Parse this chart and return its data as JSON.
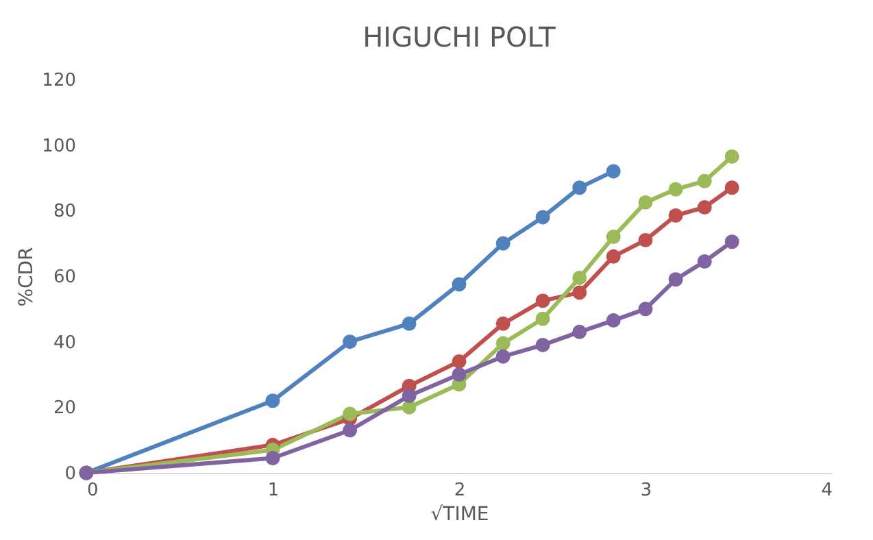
{
  "chart_data": {
    "type": "line",
    "title": "HIGUCHI POLT",
    "xlabel": "√TIME",
    "ylabel": "%CDR",
    "xlim": [
      0,
      4
    ],
    "xticks": [
      0,
      1,
      2,
      3,
      4
    ],
    "ylim": [
      0,
      120
    ],
    "yticks": [
      0,
      20,
      40,
      60,
      80,
      100,
      120
    ],
    "grid": false,
    "legend": false,
    "marker": "circle",
    "line_style": "solid",
    "series": [
      {
        "color": "#4f81bd",
        "x": [
          0,
          1,
          1.414,
          1.732,
          2,
          2.236,
          2.449,
          2.646,
          2.828
        ],
        "values": [
          0,
          22,
          40,
          45.5,
          57.5,
          70,
          78,
          87,
          92
        ]
      },
      {
        "color": "#c0504d",
        "x": [
          0,
          1,
          1.414,
          1.732,
          2,
          2.236,
          2.449,
          2.646,
          2.828,
          3,
          3.162,
          3.317,
          3.464
        ],
        "values": [
          0,
          8.5,
          16.5,
          26.5,
          34,
          45.5,
          52.5,
          55,
          66,
          71,
          78.5,
          81,
          87
        ]
      },
      {
        "color": "#9bbb59",
        "x": [
          0,
          1,
          1.414,
          1.732,
          2,
          2.236,
          2.449,
          2.646,
          2.828,
          3,
          3.162,
          3.317,
          3.464
        ],
        "values": [
          0,
          7,
          18,
          20,
          27,
          39.5,
          47,
          59.5,
          72,
          82.5,
          86.5,
          89,
          96.5
        ]
      },
      {
        "color": "#8064a2",
        "x": [
          0,
          1,
          1.414,
          1.732,
          2,
          2.236,
          2.449,
          2.646,
          2.828,
          3,
          3.162,
          3.317,
          3.464
        ],
        "values": [
          0,
          4.5,
          13,
          23.5,
          30,
          35.5,
          39,
          43,
          46.5,
          50,
          59,
          64.5,
          70.5
        ]
      }
    ]
  }
}
